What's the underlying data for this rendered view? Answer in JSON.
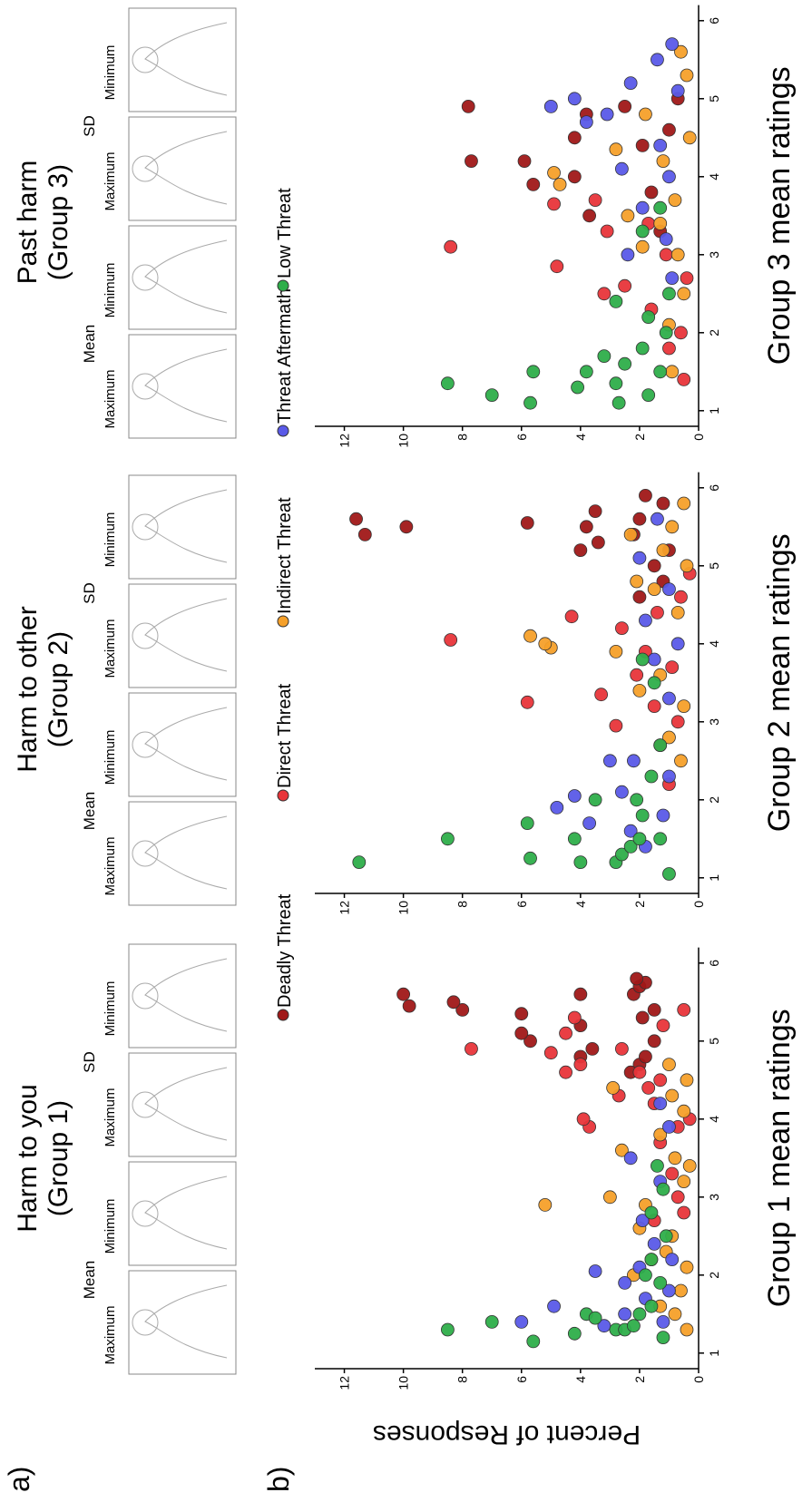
{
  "label_a": "a)",
  "label_b": "b)",
  "panel_a": [
    {
      "title": [
        "Harm to you",
        "(Group 1)"
      ],
      "groups": [
        {
          "label": "Mean",
          "images": [
            "Maximum",
            "Minimum"
          ]
        },
        {
          "label": "SD",
          "images": [
            "Maximum",
            "Minimum"
          ]
        }
      ]
    },
    {
      "title": [
        "Harm to other",
        "(Group 2)"
      ],
      "groups": [
        {
          "label": "Mean",
          "images": [
            "Maximum",
            "Minimum"
          ]
        },
        {
          "label": "SD",
          "images": [
            "Maximum",
            "Minimum"
          ]
        }
      ]
    },
    {
      "title": [
        "Past harm",
        "(Group 3)"
      ],
      "groups": [
        {
          "label": "Mean",
          "images": [
            "Maximum",
            "Minimum"
          ]
        },
        {
          "label": "SD",
          "images": [
            "Maximum",
            "Minimum"
          ]
        }
      ]
    }
  ],
  "chart_data": [
    {
      "type": "scatter",
      "x_label": "Group 1 mean ratings",
      "y_label": "Percent of Responses",
      "xlim": [
        0.8,
        6.2
      ],
      "xticks": [
        1,
        2,
        3,
        4,
        5,
        6
      ],
      "ylim": [
        0,
        13
      ],
      "yticks": [
        0,
        2,
        4,
        6,
        8,
        10,
        12
      ],
      "series": [
        {
          "name": "Deadly Threat",
          "color": "#a01818",
          "x": [
            5.45,
            5.6,
            5.4,
            5.5,
            5.35,
            5.0,
            5.1,
            5.6,
            5.2,
            4.9,
            4.8,
            5.6,
            5.7,
            5.75,
            5.8,
            5.3,
            4.7,
            4.8,
            4.6,
            5.0,
            5.4
          ],
          "values": [
            9.8,
            10.0,
            8.0,
            8.3,
            6.0,
            5.7,
            6.0,
            4.0,
            4.0,
            3.6,
            4.0,
            2.2,
            2.0,
            1.8,
            2.1,
            1.9,
            2.0,
            1.8,
            2.3,
            1.5,
            1.5
          ]
        },
        {
          "name": "Direct Threat",
          "color": "#e8353a",
          "x": [
            4.9,
            4.85,
            4.6,
            4.7,
            5.1,
            5.3,
            3.9,
            4.0,
            4.3,
            4.9,
            4.6,
            4.4,
            4.2,
            4.5,
            5.2,
            5.4,
            3.7,
            3.3,
            3.0,
            2.8,
            3.9,
            2.7,
            4.0
          ],
          "values": [
            7.7,
            5.0,
            4.5,
            4.0,
            4.5,
            4.2,
            3.7,
            3.9,
            2.7,
            2.6,
            2.0,
            1.7,
            1.5,
            1.3,
            1.2,
            0.5,
            1.3,
            0.9,
            0.7,
            0.5,
            0.7,
            1.5,
            0.3
          ]
        },
        {
          "name": "Indirect Threat",
          "color": "#f5a02a",
          "x": [
            2.9,
            3.0,
            4.4,
            2.6,
            2.9,
            3.6,
            3.8,
            2.2,
            1.5,
            1.8,
            2.1,
            2.5,
            3.2,
            3.5,
            4.1,
            4.5,
            4.7,
            1.6,
            2.0,
            3.4,
            2.3,
            1.3,
            4.3
          ],
          "values": [
            5.2,
            3.0,
            2.9,
            2.0,
            1.8,
            2.6,
            1.3,
            1.6,
            0.8,
            0.6,
            0.4,
            0.9,
            0.5,
            0.8,
            0.5,
            0.4,
            1.0,
            1.3,
            2.2,
            0.3,
            1.1,
            0.4,
            0.9
          ]
        },
        {
          "name": "Threat  Aftermath",
          "color": "#5a5ae8",
          "x": [
            1.4,
            1.6,
            1.35,
            2.05,
            1.5,
            1.7,
            1.9,
            1.4,
            1.8,
            2.4,
            2.7,
            3.2,
            3.5,
            3.9,
            4.2,
            2.1,
            2.2
          ],
          "values": [
            6.0,
            4.9,
            3.2,
            3.5,
            2.5,
            1.8,
            2.5,
            1.2,
            1.0,
            1.5,
            1.9,
            1.3,
            2.3,
            1.0,
            1.3,
            2.0,
            0.9
          ]
        },
        {
          "name": "Low Threat",
          "color": "#2eae4a",
          "x": [
            1.3,
            1.4,
            1.15,
            1.25,
            1.5,
            1.45,
            1.3,
            1.3,
            1.35,
            1.5,
            1.2,
            1.6,
            1.9,
            2.2,
            2.5,
            2.8,
            3.1,
            3.4,
            2.0
          ],
          "values": [
            8.5,
            7.0,
            5.6,
            4.2,
            3.8,
            3.5,
            2.8,
            2.5,
            2.2,
            2.0,
            1.2,
            1.6,
            1.3,
            1.6,
            1.1,
            1.6,
            1.2,
            1.4,
            1.8
          ]
        }
      ]
    },
    {
      "type": "scatter",
      "x_label": "Group 2 mean ratings",
      "xlim": [
        0.8,
        6.2
      ],
      "xticks": [
        1,
        2,
        3,
        4,
        5,
        6
      ],
      "ylim": [
        0,
        13
      ],
      "yticks": [
        0,
        2,
        4,
        6,
        8,
        10,
        12
      ],
      "series": [
        {
          "color": "#a01818",
          "x": [
            5.4,
            5.6,
            5.5,
            5.55,
            5.2,
            5.5,
            5.7,
            5.3,
            5.9,
            5.6,
            5.0,
            4.8,
            5.2,
            4.6,
            5.8,
            5.4
          ],
          "values": [
            11.3,
            11.6,
            9.9,
            5.8,
            4.0,
            3.8,
            3.5,
            3.4,
            1.8,
            2.0,
            1.5,
            1.2,
            1.0,
            2.0,
            1.2,
            2.2
          ]
        },
        {
          "color": "#e8353a",
          "x": [
            4.05,
            3.25,
            4.35,
            3.35,
            2.95,
            4.2,
            3.6,
            3.9,
            3.2,
            2.7,
            2.2,
            3.0,
            3.7,
            4.4,
            4.6,
            4.9
          ],
          "values": [
            8.4,
            5.8,
            4.3,
            3.3,
            2.8,
            2.6,
            2.1,
            1.8,
            1.5,
            1.3,
            1.0,
            0.7,
            0.9,
            1.4,
            0.6,
            0.3
          ]
        },
        {
          "color": "#f5a02a",
          "x": [
            4.1,
            3.95,
            4.0,
            3.9,
            5.4,
            4.8,
            3.4,
            5.8,
            5.5,
            5.0,
            4.4,
            3.2,
            2.8,
            2.5,
            4.7,
            5.2,
            3.6
          ],
          "values": [
            5.7,
            5.0,
            5.2,
            2.8,
            2.3,
            2.1,
            2.0,
            0.5,
            0.9,
            0.4,
            0.7,
            0.5,
            1.0,
            0.6,
            1.5,
            1.2,
            1.3
          ]
        },
        {
          "color": "#5a5ae8",
          "x": [
            1.9,
            2.05,
            1.7,
            2.5,
            2.1,
            1.6,
            2.5,
            1.4,
            1.8,
            2.3,
            3.3,
            3.8,
            4.3,
            5.1,
            5.6,
            4.7,
            4.0
          ],
          "values": [
            4.8,
            4.2,
            3.7,
            3.0,
            2.6,
            2.3,
            2.2,
            1.8,
            1.2,
            1.0,
            1.0,
            1.5,
            1.8,
            2.0,
            1.4,
            1.0,
            0.7
          ]
        },
        {
          "color": "#2eae4a",
          "x": [
            1.2,
            1.5,
            1.25,
            1.7,
            1.2,
            1.5,
            2.0,
            1.2,
            1.3,
            1.4,
            1.5,
            2.0,
            1.05,
            1.5,
            1.8,
            2.3,
            2.7,
            3.5,
            3.8
          ],
          "values": [
            11.5,
            8.5,
            5.7,
            5.8,
            4.0,
            4.2,
            3.5,
            2.8,
            2.6,
            2.3,
            2.0,
            2.1,
            1.0,
            1.3,
            1.9,
            1.6,
            1.3,
            1.5,
            1.9
          ]
        }
      ]
    },
    {
      "type": "scatter",
      "x_label": "Group 3 mean ratings",
      "xlim": [
        0.8,
        6.2
      ],
      "xticks": [
        1,
        2,
        3,
        4,
        5,
        6
      ],
      "ylim": [
        0,
        13
      ],
      "yticks": [
        0,
        2,
        4,
        6,
        8,
        10,
        12
      ],
      "series": [
        {
          "color": "#a01818",
          "x": [
            4.9,
            4.2,
            4.2,
            3.9,
            4.0,
            4.5,
            4.8,
            3.5,
            4.9,
            4.4,
            3.8,
            4.6,
            5.0,
            3.3
          ],
          "values": [
            7.8,
            7.7,
            5.9,
            5.6,
            4.2,
            4.2,
            3.8,
            3.7,
            2.5,
            1.9,
            1.6,
            1.0,
            0.7,
            1.3
          ]
        },
        {
          "color": "#e8353a",
          "x": [
            3.1,
            2.85,
            3.65,
            2.5,
            3.3,
            2.6,
            3.7,
            2.3,
            1.8,
            2.0,
            2.7,
            3.0,
            1.4,
            3.4
          ],
          "values": [
            8.4,
            4.8,
            4.9,
            3.2,
            3.1,
            2.5,
            3.5,
            1.6,
            1.0,
            0.6,
            0.4,
            1.1,
            0.5,
            1.7
          ]
        },
        {
          "color": "#f5a02a",
          "x": [
            4.05,
            3.9,
            4.35,
            3.5,
            3.1,
            2.1,
            2.5,
            3.0,
            3.7,
            4.2,
            4.8,
            5.3,
            5.6,
            4.5,
            1.5,
            3.4
          ],
          "values": [
            4.9,
            4.7,
            2.8,
            2.4,
            1.9,
            1.0,
            0.5,
            0.7,
            0.8,
            1.2,
            1.8,
            0.4,
            0.6,
            0.3,
            0.9,
            1.3
          ]
        },
        {
          "color": "#5a5ae8",
          "x": [
            4.9,
            5.0,
            4.7,
            4.8,
            5.2,
            4.1,
            3.6,
            3.0,
            4.4,
            5.5,
            5.7,
            5.1,
            4.0,
            3.2,
            2.7
          ],
          "values": [
            5.0,
            4.2,
            3.8,
            3.1,
            2.3,
            2.6,
            1.9,
            2.4,
            1.3,
            1.4,
            0.9,
            0.7,
            1.0,
            1.1,
            0.9
          ]
        },
        {
          "color": "#2eae4a",
          "x": [
            1.35,
            1.2,
            1.1,
            1.5,
            1.3,
            1.5,
            1.7,
            1.1,
            1.35,
            1.6,
            2.4,
            1.2,
            1.5,
            1.8,
            2.0,
            2.2,
            3.3,
            3.6,
            2.5
          ],
          "values": [
            8.5,
            7.0,
            5.7,
            5.6,
            4.1,
            3.8,
            3.2,
            2.7,
            2.8,
            2.5,
            2.8,
            1.7,
            1.3,
            1.9,
            1.1,
            1.7,
            1.9,
            1.3,
            1.0
          ]
        }
      ]
    }
  ]
}
